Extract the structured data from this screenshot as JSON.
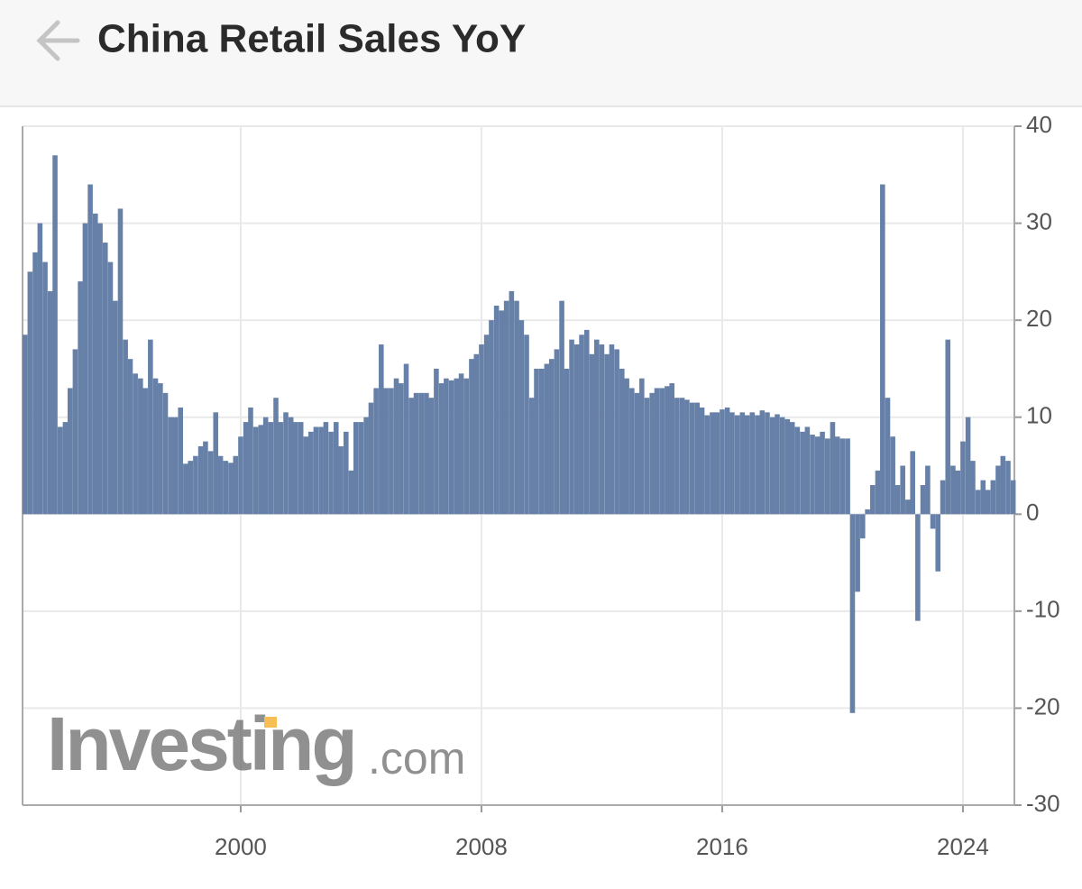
{
  "chart_data": {
    "type": "bar",
    "title": "China Retail Sales YoY",
    "watermark": {
      "brand": "Investing",
      "suffix": ".com"
    },
    "color": "#6680a8",
    "grid": true,
    "xlim": [
      1992.75,
      2025.71
    ],
    "xticks": [
      2000,
      2008,
      2016,
      2024
    ],
    "ylim": [
      -30,
      40
    ],
    "yticks": [
      -30,
      -20,
      -10,
      0,
      10,
      20,
      30,
      40
    ],
    "x": [
      1992.83,
      1993.0,
      1993.17,
      1993.33,
      1993.5,
      1993.67,
      1993.83,
      1994.0,
      1994.17,
      1994.33,
      1994.5,
      1994.67,
      1994.83,
      1995.0,
      1995.17,
      1995.33,
      1995.5,
      1995.67,
      1995.83,
      1996.0,
      1996.17,
      1996.33,
      1996.5,
      1996.67,
      1996.83,
      1997.0,
      1997.17,
      1997.33,
      1997.5,
      1997.67,
      1997.83,
      1998.0,
      1998.17,
      1998.33,
      1998.5,
      1998.67,
      1998.83,
      1999.0,
      1999.17,
      1999.33,
      1999.5,
      1999.67,
      1999.83,
      2000.0,
      2000.17,
      2000.33,
      2000.5,
      2000.67,
      2000.83,
      2001.0,
      2001.17,
      2001.33,
      2001.5,
      2001.67,
      2001.83,
      2002.0,
      2002.17,
      2002.33,
      2002.5,
      2002.67,
      2002.83,
      2003.0,
      2003.17,
      2003.33,
      2003.5,
      2003.67,
      2003.83,
      2004.0,
      2004.17,
      2004.33,
      2004.5,
      2004.67,
      2004.83,
      2005.0,
      2005.17,
      2005.33,
      2005.5,
      2005.67,
      2005.83,
      2006.0,
      2006.17,
      2006.33,
      2006.5,
      2006.67,
      2006.83,
      2007.0,
      2007.17,
      2007.33,
      2007.5,
      2007.67,
      2007.83,
      2008.0,
      2008.17,
      2008.33,
      2008.5,
      2008.67,
      2008.83,
      2009.0,
      2009.17,
      2009.33,
      2009.5,
      2009.67,
      2009.83,
      2010.0,
      2010.17,
      2010.33,
      2010.5,
      2010.67,
      2010.83,
      2011.0,
      2011.17,
      2011.33,
      2011.5,
      2011.67,
      2011.83,
      2012.0,
      2012.17,
      2012.33,
      2012.5,
      2012.67,
      2012.83,
      2013.0,
      2013.17,
      2013.33,
      2013.5,
      2013.67,
      2013.83,
      2014.0,
      2014.17,
      2014.33,
      2014.5,
      2014.67,
      2014.83,
      2015.0,
      2015.17,
      2015.33,
      2015.5,
      2015.67,
      2015.83,
      2016.0,
      2016.17,
      2016.33,
      2016.5,
      2016.67,
      2016.83,
      2017.0,
      2017.17,
      2017.33,
      2017.5,
      2017.67,
      2017.83,
      2018.0,
      2018.17,
      2018.33,
      2018.5,
      2018.67,
      2018.83,
      2019.0,
      2019.17,
      2019.33,
      2019.5,
      2019.67,
      2019.83,
      2020.0,
      2020.17,
      2020.33,
      2020.5,
      2020.67,
      2020.83,
      2021.0,
      2021.17,
      2021.33,
      2021.5,
      2021.67,
      2021.83,
      2022.0,
      2022.17,
      2022.33,
      2022.5,
      2022.67,
      2022.83,
      2023.0,
      2023.17,
      2023.33,
      2023.5,
      2023.67,
      2023.83,
      2024.0,
      2024.17,
      2024.33,
      2024.5,
      2024.67,
      2024.83,
      2025.0,
      2025.17,
      2025.33,
      2025.5,
      2025.67
    ],
    "values": [
      18.5,
      25,
      27,
      30,
      26,
      23,
      37,
      9,
      9.5,
      13,
      17,
      24,
      30,
      34,
      31,
      30,
      28,
      26,
      22,
      31.5,
      18,
      16,
      14.5,
      14,
      13,
      18,
      14,
      13.5,
      12.5,
      10,
      10,
      11,
      5.2,
      5.5,
      6,
      7,
      7.5,
      6.5,
      10.5,
      6,
      5.5,
      5.3,
      6,
      8,
      9.5,
      11,
      9,
      9.2,
      10,
      9.5,
      12,
      9.5,
      10.5,
      10,
      9.5,
      9.5,
      8,
      8.5,
      9,
      9,
      9.5,
      8.5,
      9.5,
      7,
      8.5,
      4.5,
      9.5,
      9.5,
      10,
      11.5,
      13,
      17.5,
      13,
      13,
      14,
      13.5,
      15.5,
      12,
      12.5,
      12.5,
      12.5,
      12,
      15,
      13.5,
      14,
      13.8,
      14,
      14.5,
      14,
      16,
      16.5,
      17.5,
      18.5,
      20,
      21.5,
      21,
      22,
      23,
      22,
      20,
      18.5,
      12,
      15,
      15,
      15.5,
      16,
      17,
      22,
      15,
      18,
      17.5,
      18.5,
      19,
      16.5,
      18,
      17.5,
      16.5,
      17.5,
      17,
      15,
      14,
      13,
      12.5,
      14,
      12,
      12.5,
      13,
      13,
      13.2,
      13.5,
      12,
      12,
      11.8,
      11.5,
      11.5,
      11,
      10.2,
      10.5,
      10.5,
      10.8,
      11,
      10.5,
      10.2,
      10.5,
      10.2,
      10.5,
      10.2,
      10.7,
      10.5,
      10,
      10.3,
      10,
      9.8,
      9.5,
      9,
      8.5,
      9,
      8.2,
      8,
      8.5,
      7.8,
      9.5,
      8,
      7.8,
      7.8,
      -20.5,
      -8,
      -2.5,
      0.5,
      3,
      4.5,
      34,
      12,
      8,
      3,
      5,
      1.5,
      6.5,
      -11,
      3,
      5,
      -1.5,
      -5.9,
      3.5,
      18,
      5,
      4.5,
      7.5,
      10,
      5.5,
      2.5,
      3.5,
      2.5,
      3.5,
      5,
      6,
      5.5,
      3.5
    ]
  }
}
